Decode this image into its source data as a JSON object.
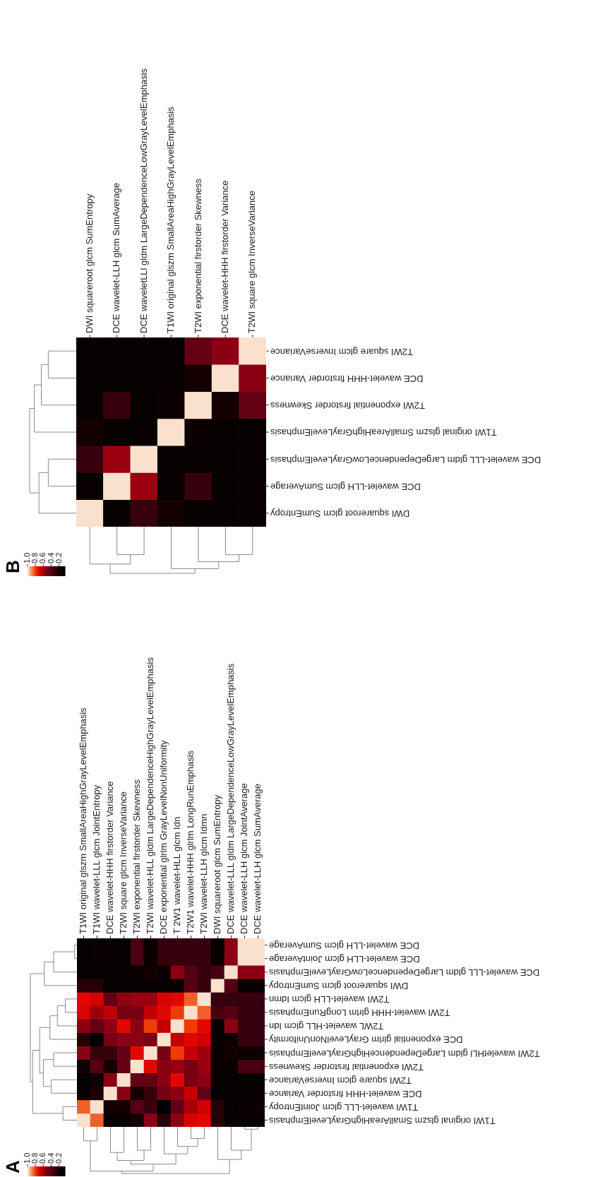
{
  "chart_data": [
    {
      "type": "heatmap",
      "title": "A",
      "categories": [
        "T1WI original glszm SmallAreaHighGrayLevelEmphasis",
        "T1WI wavelet-LLL glcm JointEntropy",
        "DCE wavelet-HHH firstorder Variance",
        "T2WI square glcm InverseVariance",
        "T2WI exponential firstorder Skewness",
        "T2WI wavelet-HLL gldm LargeDependenceHighGrayLevelEmphasis",
        "DCE exponential glrlm GrayLevelNonUniformity",
        "T 2W1 wavelet-HLL glcm Idn",
        "T2W1 wavelet-HHH glrlm LongRunEmphasis",
        "T2WI wavelet-LLH glcm Idmn",
        "DWI squareroot glcm SumEntropy",
        "DCE wavelet-LLL gldm LargeDependenceLowGrayLevelEmphasis",
        "DCE wavelet-LLH glcm JointAverage",
        "DCE wavelet-LLH glcm SumAverage"
      ],
      "y_categories": [
        "DCE wavelet-LLH glcm SumAverage",
        "DCE wavelet-LLH glcm JointAverage",
        "DCE wavelet-LLL gldm LargeDependenceLowGrayLevelEmphasis",
        "DWI squareroot glcm SumEntropy",
        "T2WI wavelet-LLH glcm Idmn",
        "T2WI wavelet-HHH glrlm LongRunEmphasis",
        "T2WL wavelet-HLL glcm Idn",
        "DCE exponential glrlm GrayLevelNonUniformity",
        "T2WI waveletHLl gldm LargeDependenceHighGrayLevelEmphasis",
        "T2WI exponential firstorder Skewness",
        "T2WI square glcm InverseVariance",
        "DCE wavelet-HHH firstorder Variance",
        "T1WI wavelet-LLL glcm JointEntropy",
        "T1WI original glszm SmallAreaHighGrayLevelEmphasis"
      ],
      "cells": [
        [
          0.1,
          0.15,
          0.1,
          0.1,
          0.35,
          0.12,
          0.3,
          0.3,
          0.3,
          0.3,
          0.1,
          0.55,
          1.0,
          1.0
        ],
        [
          0.1,
          0.15,
          0.1,
          0.1,
          0.35,
          0.12,
          0.3,
          0.3,
          0.3,
          0.3,
          0.12,
          0.55,
          1.0,
          1.0
        ],
        [
          0.1,
          0.1,
          0.1,
          0.1,
          0.1,
          0.2,
          0.15,
          0.55,
          0.4,
          0.3,
          0.35,
          1.0,
          0.55,
          0.55
        ],
        [
          0.25,
          0.25,
          0.1,
          0.1,
          0.1,
          0.1,
          0.1,
          0.1,
          0.4,
          0.3,
          1.0,
          0.4,
          0.1,
          0.1
        ],
        [
          0.72,
          0.68,
          0.45,
          0.55,
          0.58,
          0.58,
          0.7,
          0.72,
          0.85,
          1.0,
          0.3,
          0.3,
          0.3,
          0.3
        ],
        [
          0.7,
          0.58,
          0.65,
          0.5,
          0.5,
          0.65,
          0.72,
          0.8,
          1.0,
          0.85,
          0.35,
          0.4,
          0.3,
          0.3
        ],
        [
          0.55,
          0.45,
          0.55,
          0.72,
          0.55,
          0.8,
          0.65,
          1.0,
          0.8,
          0.72,
          0.1,
          0.55,
          0.3,
          0.3
        ],
        [
          0.25,
          0.05,
          0.5,
          0.55,
          0.55,
          0.5,
          1.0,
          0.65,
          0.72,
          0.68,
          0.1,
          0.15,
          0.3,
          0.3
        ],
        [
          0.55,
          0.3,
          0.3,
          0.45,
          0.72,
          1.0,
          0.5,
          0.8,
          0.65,
          0.58,
          0.1,
          0.2,
          0.15,
          0.15
        ],
        [
          0.2,
          0.4,
          0.2,
          0.45,
          1.0,
          0.72,
          0.55,
          0.58,
          0.5,
          0.58,
          0.1,
          0.1,
          0.35,
          0.35
        ],
        [
          0.1,
          0.18,
          0.55,
          1.0,
          0.45,
          0.45,
          0.55,
          0.72,
          0.5,
          0.55,
          0.1,
          0.1,
          0.1,
          0.1
        ],
        [
          0.1,
          0.22,
          1.0,
          0.55,
          0.2,
          0.3,
          0.5,
          0.55,
          0.65,
          0.45,
          0.1,
          0.1,
          0.1,
          0.1
        ],
        [
          0.85,
          1.0,
          0.2,
          0.18,
          0.4,
          0.3,
          0.05,
          0.45,
          0.6,
          0.68,
          0.25,
          0.1,
          0.15,
          0.15
        ],
        [
          1.0,
          0.85,
          0.1,
          0.1,
          0.2,
          0.55,
          0.25,
          0.55,
          0.7,
          0.72,
          0.25,
          0.1,
          0.1,
          0.1
        ]
      ],
      "clim": [
        0.05,
        1.0
      ],
      "cticks": [
        0.2,
        0.4,
        0.6,
        0.8,
        {
          "value": 1,
          "label": "1.0"
        }
      ]
    },
    {
      "type": "heatmap",
      "title": "B",
      "categories": [
        "DWI squareroot glcm SumEntropy",
        "DCE wavelet-LLH glcm SumAverage",
        "DCE waveletLLl gldm LargeDependenceLowGrayLevelEmphasis",
        "T1WI original glszm SmallAreaHighGrayLevelEmphasis",
        "T2WI exponential firstorder Skewness",
        "DCE wavelet-HHH firstorder Variance",
        "T2WI square glcm InverseVariance"
      ],
      "y_categories": [
        "T2WI square glcm InverseVariance",
        "DCE wavelet-HHH firstorder Variance",
        "T2WI exponential firstorder Skewness",
        "T1WI original glszm SmallAreaHighGrayLevelEmphasis",
        "DCE wavelet-LLL gldm LargeDependenceLowGrayLevelEmphasis",
        "DCE wavelet-LLH glcm SumAverage",
        "DWI squareroot glcm SumEntropy"
      ],
      "cells": [
        [
          0.1,
          0.1,
          0.1,
          0.1,
          0.45,
          0.55,
          1.0
        ],
        [
          0.1,
          0.1,
          0.1,
          0.1,
          0.2,
          1.0,
          0.55
        ],
        [
          0.1,
          0.3,
          0.1,
          0.15,
          1.0,
          0.2,
          0.45
        ],
        [
          0.2,
          0.1,
          0.1,
          1.0,
          0.15,
          0.1,
          0.1
        ],
        [
          0.3,
          0.58,
          1.0,
          0.1,
          0.1,
          0.1,
          0.1
        ],
        [
          0.12,
          1.0,
          0.58,
          0.1,
          0.3,
          0.1,
          0.1
        ],
        [
          1.0,
          0.12,
          0.3,
          0.2,
          0.1,
          0.1,
          0.1
        ]
      ],
      "clim": [
        0.05,
        1.0
      ],
      "cticks": [
        0.2,
        0.4,
        0.6,
        0.8,
        {
          "value": 1,
          "label": "1.0"
        }
      ]
    }
  ]
}
